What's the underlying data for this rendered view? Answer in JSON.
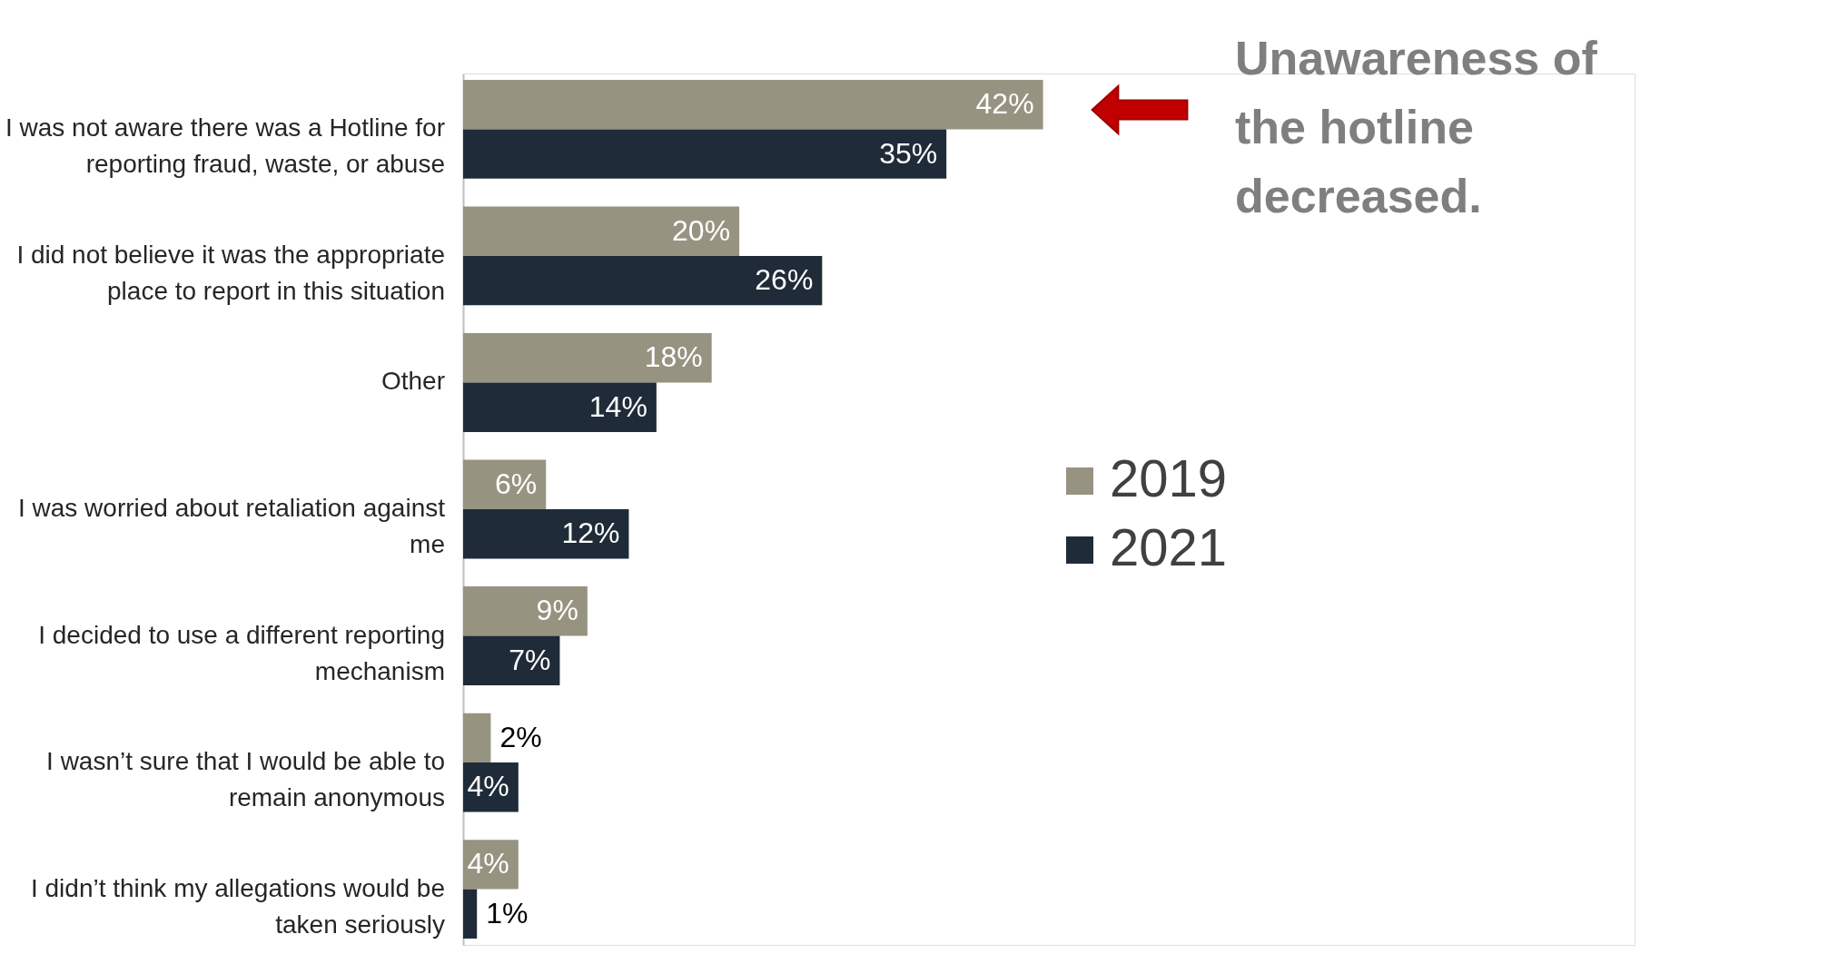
{
  "chart_data": {
    "type": "bar",
    "orientation": "horizontal",
    "legend": "right",
    "categories": [
      "I was not aware there was a Hotline for reporting fraud, waste, or abuse",
      "I did not believe it was the appropriate place to report in this situation",
      "Other",
      "I was worried about retaliation against me",
      "I decided to use a different reporting mechanism",
      "I wasn’t sure that I would be able to remain anonymous",
      "I didn’t think my allegations would be taken seriously"
    ],
    "series": [
      {
        "name": "2019",
        "color": "#979381",
        "values": [
          42,
          20,
          18,
          6,
          9,
          2,
          4
        ],
        "value_labels": [
          "42%",
          "20%",
          "18%",
          "6%",
          "9%",
          "2%",
          "4%"
        ]
      },
      {
        "name": "2021",
        "color": "#1f2b38",
        "values": [
          35,
          26,
          14,
          12,
          7,
          4,
          1
        ],
        "value_labels": [
          "35%",
          "26%",
          "14%",
          "12%",
          "7%",
          "4%",
          "1%"
        ]
      }
    ],
    "annotations": [
      "Unawareness of the hotline decreased."
    ]
  }
}
